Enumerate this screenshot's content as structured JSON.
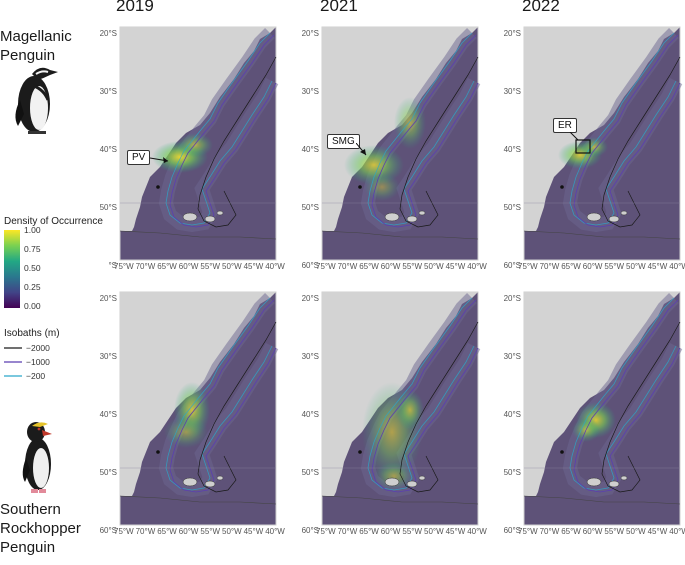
{
  "years": [
    "2019",
    "2021",
    "2022"
  ],
  "species": [
    {
      "name_line1": "Magellanic",
      "name_line2": "Penguin",
      "name_line3": ""
    },
    {
      "name_line1": "Southern",
      "name_line2": "Rockhopper",
      "name_line3": "Penguin"
    }
  ],
  "lat_labels": [
    "20°S",
    "30°S",
    "40°S",
    "50°S",
    "60°S"
  ],
  "first_panel_lat_labels": [
    "20°S",
    "30°S",
    "40°S",
    "50°S",
    "°S"
  ],
  "lon_labels": [
    "75°W",
    "70°W",
    "65°W",
    "60°W",
    "55°W",
    "50°W",
    "45°W",
    "40°W"
  ],
  "callouts": {
    "pv": "PV",
    "smg": "SMG",
    "er": "ER"
  },
  "density_legend": {
    "title": "Density of Occurrence",
    "ticks": [
      "1.00",
      "0.75",
      "0.50",
      "0.25",
      "0.00"
    ],
    "colors": [
      "#fde725",
      "#7ad151",
      "#22a884",
      "#2a788e",
      "#414487",
      "#440154"
    ]
  },
  "isobath_legend": {
    "title": "Isobaths (m)",
    "items": [
      {
        "label": "−2000",
        "color": "#1a1a1a"
      },
      {
        "label": "−1000",
        "color": "#5b3fb0"
      },
      {
        "label": "−200",
        "color": "#2aa7c9"
      }
    ]
  },
  "colors": {
    "land": "#d3d3d3",
    "ocean": "#5e5278",
    "panel_border": "#cfcfcf"
  }
}
